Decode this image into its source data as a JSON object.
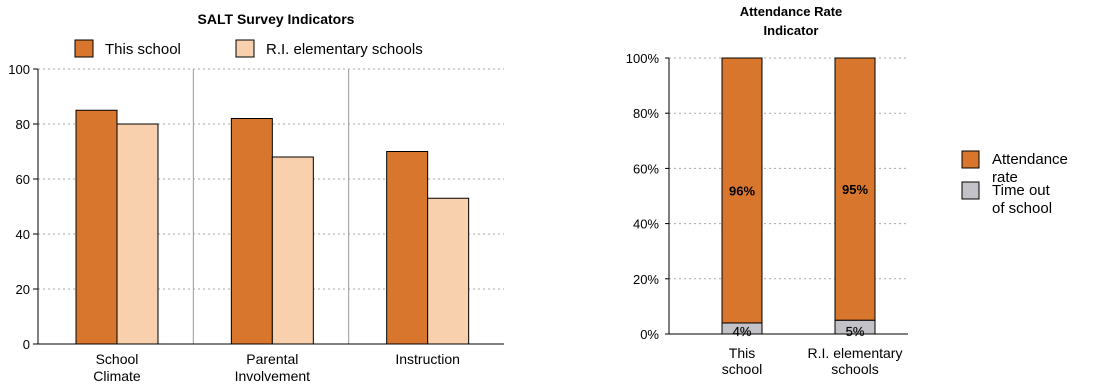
{
  "colors": {
    "this_school": "#d9762e",
    "state": "#f8d0ad",
    "time_out": "#c2c2c8",
    "grid": "#aaaaaa",
    "axis": "#000000",
    "divider": "#999999"
  },
  "chart_data": [
    {
      "type": "bar",
      "title": "SALT Survey Indicators",
      "categories": [
        [
          "School",
          "Climate"
        ],
        [
          "Parental",
          "Involvement"
        ],
        [
          "Instruction"
        ]
      ],
      "series": [
        {
          "name": "This school",
          "values": [
            85,
            82,
            70
          ]
        },
        {
          "name": "R.I. elementary schools",
          "values": [
            80,
            68,
            53
          ]
        }
      ],
      "ylim": [
        0,
        100
      ],
      "yticks": [
        0,
        20,
        40,
        60,
        80,
        100
      ],
      "grid": true,
      "legend": "top"
    },
    {
      "type": "bar",
      "stacked": true,
      "title": [
        "Attendance Rate",
        "Indicator"
      ],
      "categories": [
        [
          "This",
          "school"
        ],
        [
          "R.I. elementary",
          "schools"
        ]
      ],
      "series": [
        {
          "name": [
            "Time out",
            "of school"
          ],
          "values": [
            4,
            5
          ],
          "labels": [
            "4%",
            "5%"
          ]
        },
        {
          "name": [
            "Attendance",
            "rate"
          ],
          "values": [
            96,
            95
          ],
          "labels": [
            "96%",
            "95%"
          ]
        }
      ],
      "ylim": [
        0,
        100
      ],
      "yticks": [
        "0%",
        "20%",
        "40%",
        "60%",
        "80%",
        "100%"
      ],
      "grid": true,
      "legend": "right"
    }
  ]
}
